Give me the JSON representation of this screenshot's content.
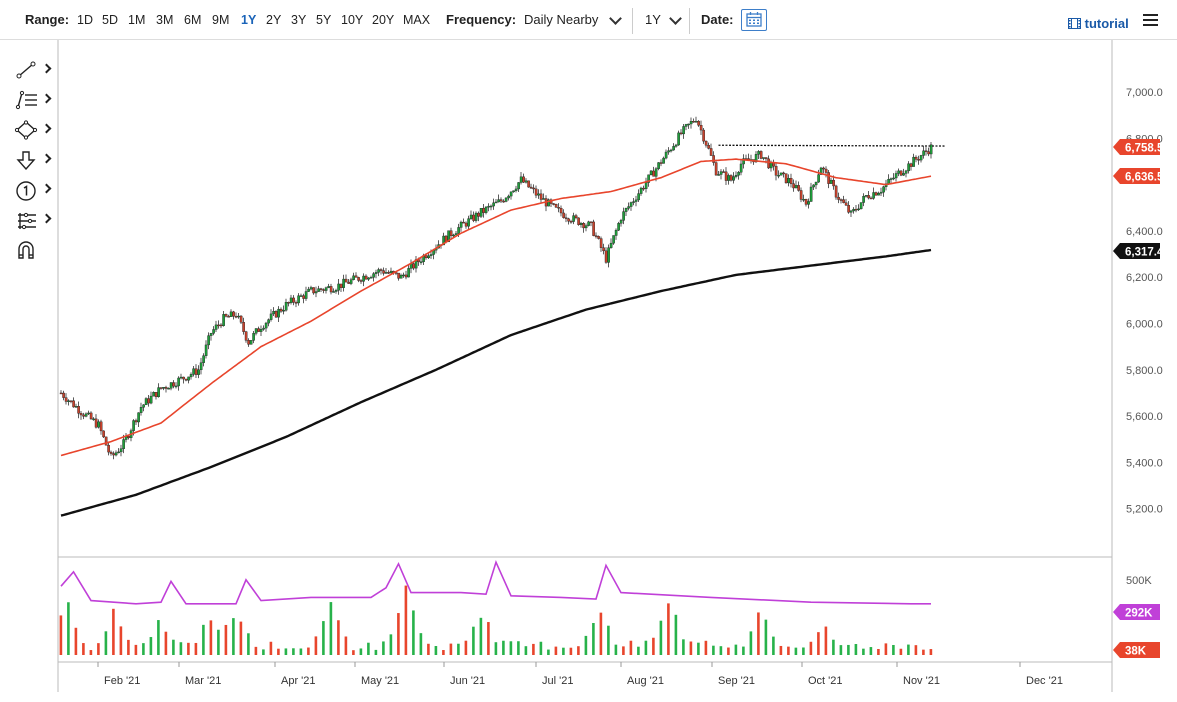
{
  "toolbar": {
    "range_label": "Range:",
    "ranges": [
      "1D",
      "5D",
      "1M",
      "3M",
      "6M",
      "9M",
      "1Y",
      "2Y",
      "3Y",
      "5Y",
      "10Y",
      "20Y",
      "MAX"
    ],
    "active_range": "1Y",
    "frequency_label": "Frequency:",
    "frequency_value": "Daily Nearby",
    "period_value": "1Y",
    "date_label": "Date:",
    "tutorial_label": "tutorial",
    "tools": [
      "line-tool-icon",
      "fib-tool-icon",
      "shape-tool-icon",
      "arrow-tool-icon",
      "number-marker-icon",
      "measure-tool-icon",
      "magnet-icon"
    ]
  },
  "chart_data": [
    {
      "type": "candlestick",
      "title": "",
      "xlabel": "",
      "ylabel": "",
      "x_ticks": [
        "Feb '21",
        "Mar '21",
        "Apr '21",
        "May '21",
        "Jun '21",
        "Jul '21",
        "Aug '21",
        "Sep '21",
        "Oct '21",
        "Nov '21",
        "Dec '21"
      ],
      "y_ticks": [
        "5,200.0",
        "5,400.0",
        "5,600.0",
        "5,800.0",
        "6,000.0",
        "6,200.0",
        "6,400.0",
        "6,800.0",
        "7,000.0"
      ],
      "ylim": [
        5050,
        7150
      ],
      "grid": false,
      "price_path": [
        [
          0,
          5700
        ],
        [
          8,
          5620
        ],
        [
          15,
          5560
        ],
        [
          20,
          5420
        ],
        [
          25,
          5480
        ],
        [
          32,
          5640
        ],
        [
          40,
          5720
        ],
        [
          48,
          5760
        ],
        [
          55,
          5800
        ],
        [
          60,
          5960
        ],
        [
          65,
          6020
        ],
        [
          70,
          6040
        ],
        [
          75,
          5920
        ],
        [
          80,
          5990
        ],
        [
          90,
          6080
        ],
        [
          100,
          6140
        ],
        [
          110,
          6160
        ],
        [
          120,
          6200
        ],
        [
          128,
          6230
        ],
        [
          136,
          6200
        ],
        [
          146,
          6300
        ],
        [
          156,
          6390
        ],
        [
          168,
          6480
        ],
        [
          176,
          6530
        ],
        [
          184,
          6620
        ],
        [
          192,
          6540
        ],
        [
          198,
          6490
        ],
        [
          205,
          6450
        ],
        [
          212,
          6420
        ],
        [
          218,
          6280
        ],
        [
          224,
          6460
        ],
        [
          232,
          6580
        ],
        [
          240,
          6700
        ],
        [
          248,
          6820
        ],
        [
          254,
          6890
        ],
        [
          258,
          6780
        ],
        [
          262,
          6660
        ],
        [
          268,
          6620
        ],
        [
          272,
          6690
        ],
        [
          280,
          6730
        ],
        [
          286,
          6650
        ],
        [
          292,
          6610
        ],
        [
          298,
          6520
        ],
        [
          304,
          6680
        ],
        [
          310,
          6560
        ],
        [
          316,
          6470
        ],
        [
          322,
          6550
        ],
        [
          328,
          6580
        ],
        [
          334,
          6640
        ],
        [
          342,
          6710
        ],
        [
          348,
          6760
        ]
      ],
      "current_price": "6,758.5",
      "resistance_level": 6770,
      "series": [
        {
          "name": "",
          "color": "#e8452c",
          "values": [
            [
              0,
              5430
            ],
            [
              20,
              5490
            ],
            [
              40,
              5570
            ],
            [
              60,
              5740
            ],
            [
              80,
              5900
            ],
            [
              100,
              6010
            ],
            [
              120,
              6140
            ],
            [
              140,
              6260
            ],
            [
              160,
              6390
            ],
            [
              180,
              6490
            ],
            [
              200,
              6540
            ],
            [
              220,
              6570
            ],
            [
              240,
              6630
            ],
            [
              256,
              6700
            ],
            [
              270,
              6710
            ],
            [
              290,
              6690
            ],
            [
              310,
              6630
            ],
            [
              330,
              6600
            ],
            [
              348,
              6636.5
            ]
          ],
          "last_label": "6,636.5"
        },
        {
          "name": "",
          "color": "#111111",
          "values": [
            [
              0,
              5170
            ],
            [
              30,
              5260
            ],
            [
              60,
              5380
            ],
            [
              90,
              5510
            ],
            [
              120,
              5660
            ],
            [
              150,
              5800
            ],
            [
              180,
              5950
            ],
            [
              210,
              6060
            ],
            [
              240,
              6140
            ],
            [
              270,
              6210
            ],
            [
              300,
              6250
            ],
            [
              330,
              6290
            ],
            [
              348,
              6317.4
            ]
          ],
          "last_label": "6,317.4"
        }
      ]
    },
    {
      "type": "bar",
      "title": "",
      "y_ticks": [
        "500K"
      ],
      "ylim": [
        0,
        650000
      ],
      "volume_spikes": [
        [
          2,
          380000
        ],
        [
          21,
          290000
        ],
        [
          40,
          260000
        ],
        [
          60,
          290000
        ],
        [
          70,
          340000
        ],
        [
          108,
          350000
        ],
        [
          138,
          520000
        ],
        [
          168,
          330000
        ],
        [
          215,
          350000
        ],
        [
          243,
          400000
        ],
        [
          280,
          305000
        ],
        [
          305,
          220000
        ]
      ],
      "average_line_color": "#c040d8",
      "average_labels": {
        "avg": "292K",
        "last": "38K"
      },
      "average_path": [
        [
          0,
          430000
        ],
        [
          5,
          520000
        ],
        [
          12,
          340000
        ],
        [
          30,
          320000
        ],
        [
          40,
          330000
        ],
        [
          44,
          460000
        ],
        [
          50,
          320000
        ],
        [
          70,
          320000
        ],
        [
          74,
          470000
        ],
        [
          80,
          340000
        ],
        [
          100,
          360000
        ],
        [
          124,
          360000
        ],
        [
          130,
          420000
        ],
        [
          135,
          570000
        ],
        [
          140,
          390000
        ],
        [
          160,
          390000
        ],
        [
          170,
          380000
        ],
        [
          174,
          580000
        ],
        [
          180,
          370000
        ],
        [
          200,
          360000
        ],
        [
          214,
          350000
        ],
        [
          218,
          560000
        ],
        [
          224,
          390000
        ],
        [
          260,
          360000
        ],
        [
          300,
          330000
        ],
        [
          340,
          320000
        ],
        [
          348,
          320000
        ]
      ]
    }
  ]
}
